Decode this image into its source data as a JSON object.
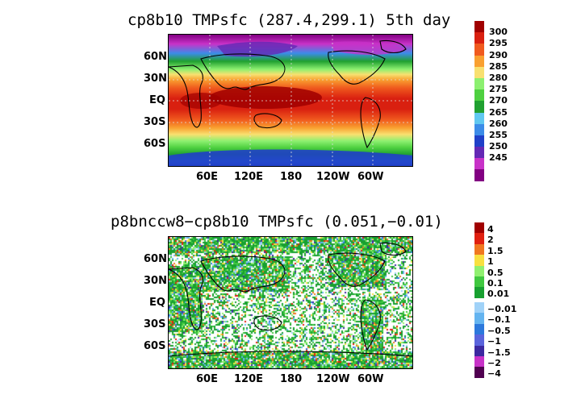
{
  "panels": [
    {
      "title": "cp8b10 TMPsfc (287.4,299.1) 5th day",
      "lat_labels": [
        "60N",
        "30N",
        "EQ",
        "30S",
        "60S"
      ],
      "lon_labels": [
        "60E",
        "120E",
        "180",
        "120W",
        "60W"
      ],
      "colorbar": {
        "labels": [
          "300",
          "295",
          "290",
          "285",
          "280",
          "275",
          "270",
          "265",
          "260",
          "255",
          "250",
          "245"
        ],
        "colors": [
          "#a00000",
          "#d92010",
          "#f05a1e",
          "#f9a030",
          "#f8e070",
          "#8cf070",
          "#4ed040",
          "#20a030",
          "#60c8f0",
          "#3c8ce8",
          "#2040c8",
          "#6428b4",
          "#c832c8",
          "#820082"
        ]
      }
    },
    {
      "title": "p8bnccw8−cp8b10 TMPsfc (0.051,−0.01)",
      "lat_labels": [
        "60N",
        "30N",
        "EQ",
        "30S",
        "60S"
      ],
      "lon_labels": [
        "60E",
        "120E",
        "180",
        "120W",
        "60W"
      ],
      "colorbar": {
        "upper_labels": [
          "4",
          "2",
          "1.5",
          "1",
          "0.5",
          "0.1",
          "0.01"
        ],
        "upper_colors": [
          "#a00000",
          "#e02010",
          "#f07820",
          "#f8e040",
          "#90f070",
          "#40c840",
          "#18a030"
        ],
        "lower_labels": [
          "−0.01",
          "−0.1",
          "−0.5",
          "−1",
          "−1.5",
          "−2",
          "−4"
        ],
        "lower_colors": [
          "#a0d2f8",
          "#64b4f0",
          "#2c78dc",
          "#5a64dc",
          "#3c28a0",
          "#c832c8",
          "#500050"
        ]
      }
    }
  ]
}
